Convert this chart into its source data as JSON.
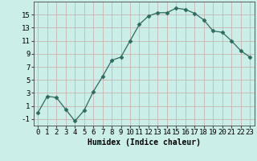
{
  "x": [
    0,
    1,
    2,
    3,
    4,
    5,
    6,
    7,
    8,
    9,
    10,
    11,
    12,
    13,
    14,
    15,
    16,
    17,
    18,
    19,
    20,
    21,
    22,
    23
  ],
  "y": [
    0,
    2.5,
    2.3,
    0.5,
    -1.3,
    0.3,
    3.2,
    5.5,
    8.0,
    8.5,
    11.0,
    13.5,
    14.8,
    15.3,
    15.3,
    16.0,
    15.8,
    15.2,
    14.2,
    12.5,
    12.3,
    11.0,
    9.5,
    8.5
  ],
  "xlabel": "Humidex (Indice chaleur)",
  "xlim": [
    -0.5,
    23.5
  ],
  "ylim": [
    -2,
    17
  ],
  "yticks": [
    -1,
    1,
    3,
    5,
    7,
    9,
    11,
    13,
    15
  ],
  "xtick_labels": [
    "0",
    "1",
    "2",
    "3",
    "4",
    "5",
    "6",
    "7",
    "8",
    "9",
    "10",
    "11",
    "12",
    "13",
    "14",
    "15",
    "16",
    "17",
    "18",
    "19",
    "20",
    "21",
    "22",
    "23"
  ],
  "line_color": "#2d6b5e",
  "marker": "D",
  "marker_size": 2.5,
  "bg_color": "#cceee8",
  "grid_color": "#c8a8a8",
  "xlabel_fontsize": 7,
  "tick_fontsize": 6.5
}
